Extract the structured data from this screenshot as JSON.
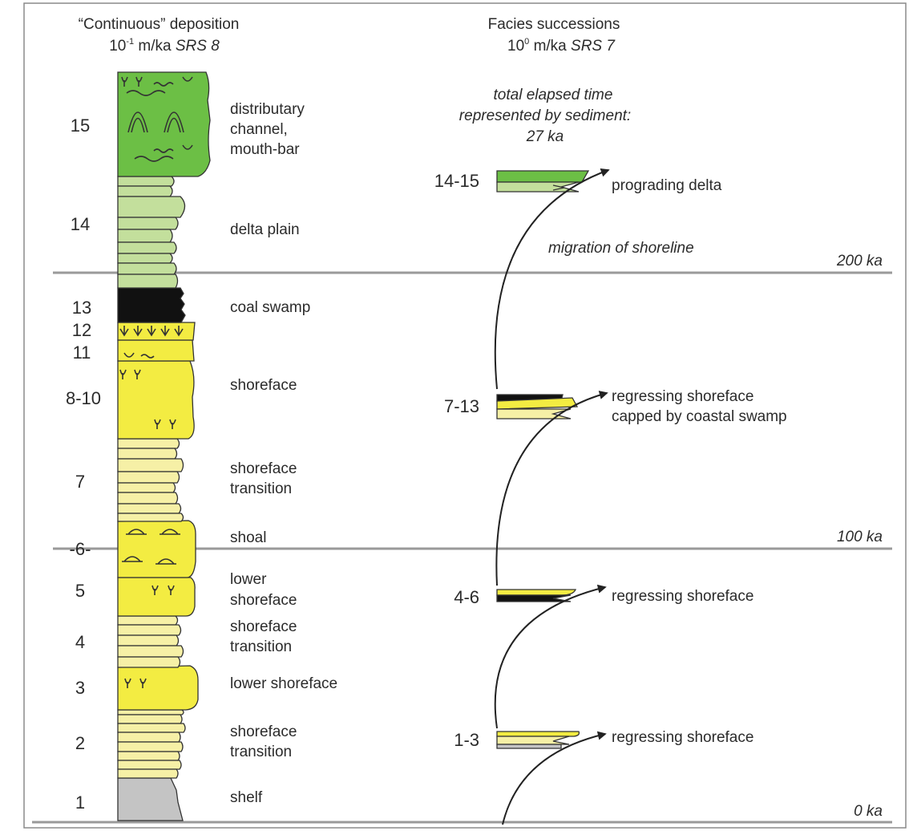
{
  "header": {
    "left_title": "“Continuous” deposition",
    "left_rate_base": "10",
    "left_rate_exp": "-1",
    "left_rate_unit": " m/ka",
    "left_srs": "SRS 8",
    "right_title": "Facies successions",
    "right_rate_base": "10",
    "right_rate_exp": "0",
    "right_rate_unit": " m/ka",
    "right_srs": "SRS 7"
  },
  "elapsed_note": {
    "line1": "total elapsed time",
    "line2": "represented by sediment:",
    "line3": "27 ka"
  },
  "time_lines": [
    {
      "label": "200 ka"
    },
    {
      "label": "100 ka"
    },
    {
      "label": "0 ka"
    }
  ],
  "migration_label": "migration of shoreline",
  "column_numbers": [
    "1",
    "2",
    "3",
    "4",
    "5",
    "-6-",
    "7",
    "8-10",
    "11",
    "12",
    "13",
    "14",
    "15"
  ],
  "facies_labels": [
    {
      "lines": [
        "shelf"
      ]
    },
    {
      "lines": [
        "shoreface",
        "transition"
      ]
    },
    {
      "lines": [
        "lower shoreface"
      ]
    },
    {
      "lines": [
        "shoreface",
        "transition"
      ]
    },
    {
      "lines": [
        "lower",
        "shoreface"
      ]
    },
    {
      "lines": [
        "shoal"
      ]
    },
    {
      "lines": [
        "shoreface",
        "transition"
      ]
    },
    {
      "lines": [
        "shoreface"
      ]
    },
    {
      "lines": [
        "coal swamp"
      ]
    },
    {
      "lines": [
        "delta plain"
      ]
    },
    {
      "lines": [
        "distributary",
        "channel,",
        "mouth-bar"
      ]
    }
  ],
  "successions": [
    {
      "id": "1-3",
      "label": [
        "regressing shoreface"
      ]
    },
    {
      "id": "4-6",
      "label": [
        "regressing shoreface"
      ]
    },
    {
      "id": "7-13",
      "label": [
        "regressing shoreface",
        "capped by coastal swamp"
      ]
    },
    {
      "id": "14-15",
      "label": [
        "prograding delta"
      ]
    }
  ],
  "colors": {
    "shelf": "#c4c4c4",
    "transition": "#f6f0a6",
    "shoreface": "#f3ec42",
    "coal": "#111111",
    "delta_plain": "#c3df9c",
    "channel": "#6cbf45",
    "time_line": "#9a9a9a",
    "frame": "#8a8a8a"
  },
  "icons": [
    "burrow-icon",
    "ripple-icon",
    "shell-icon",
    "roots-icon",
    "cross-bed-icon",
    "curved-arrow-icon"
  ]
}
